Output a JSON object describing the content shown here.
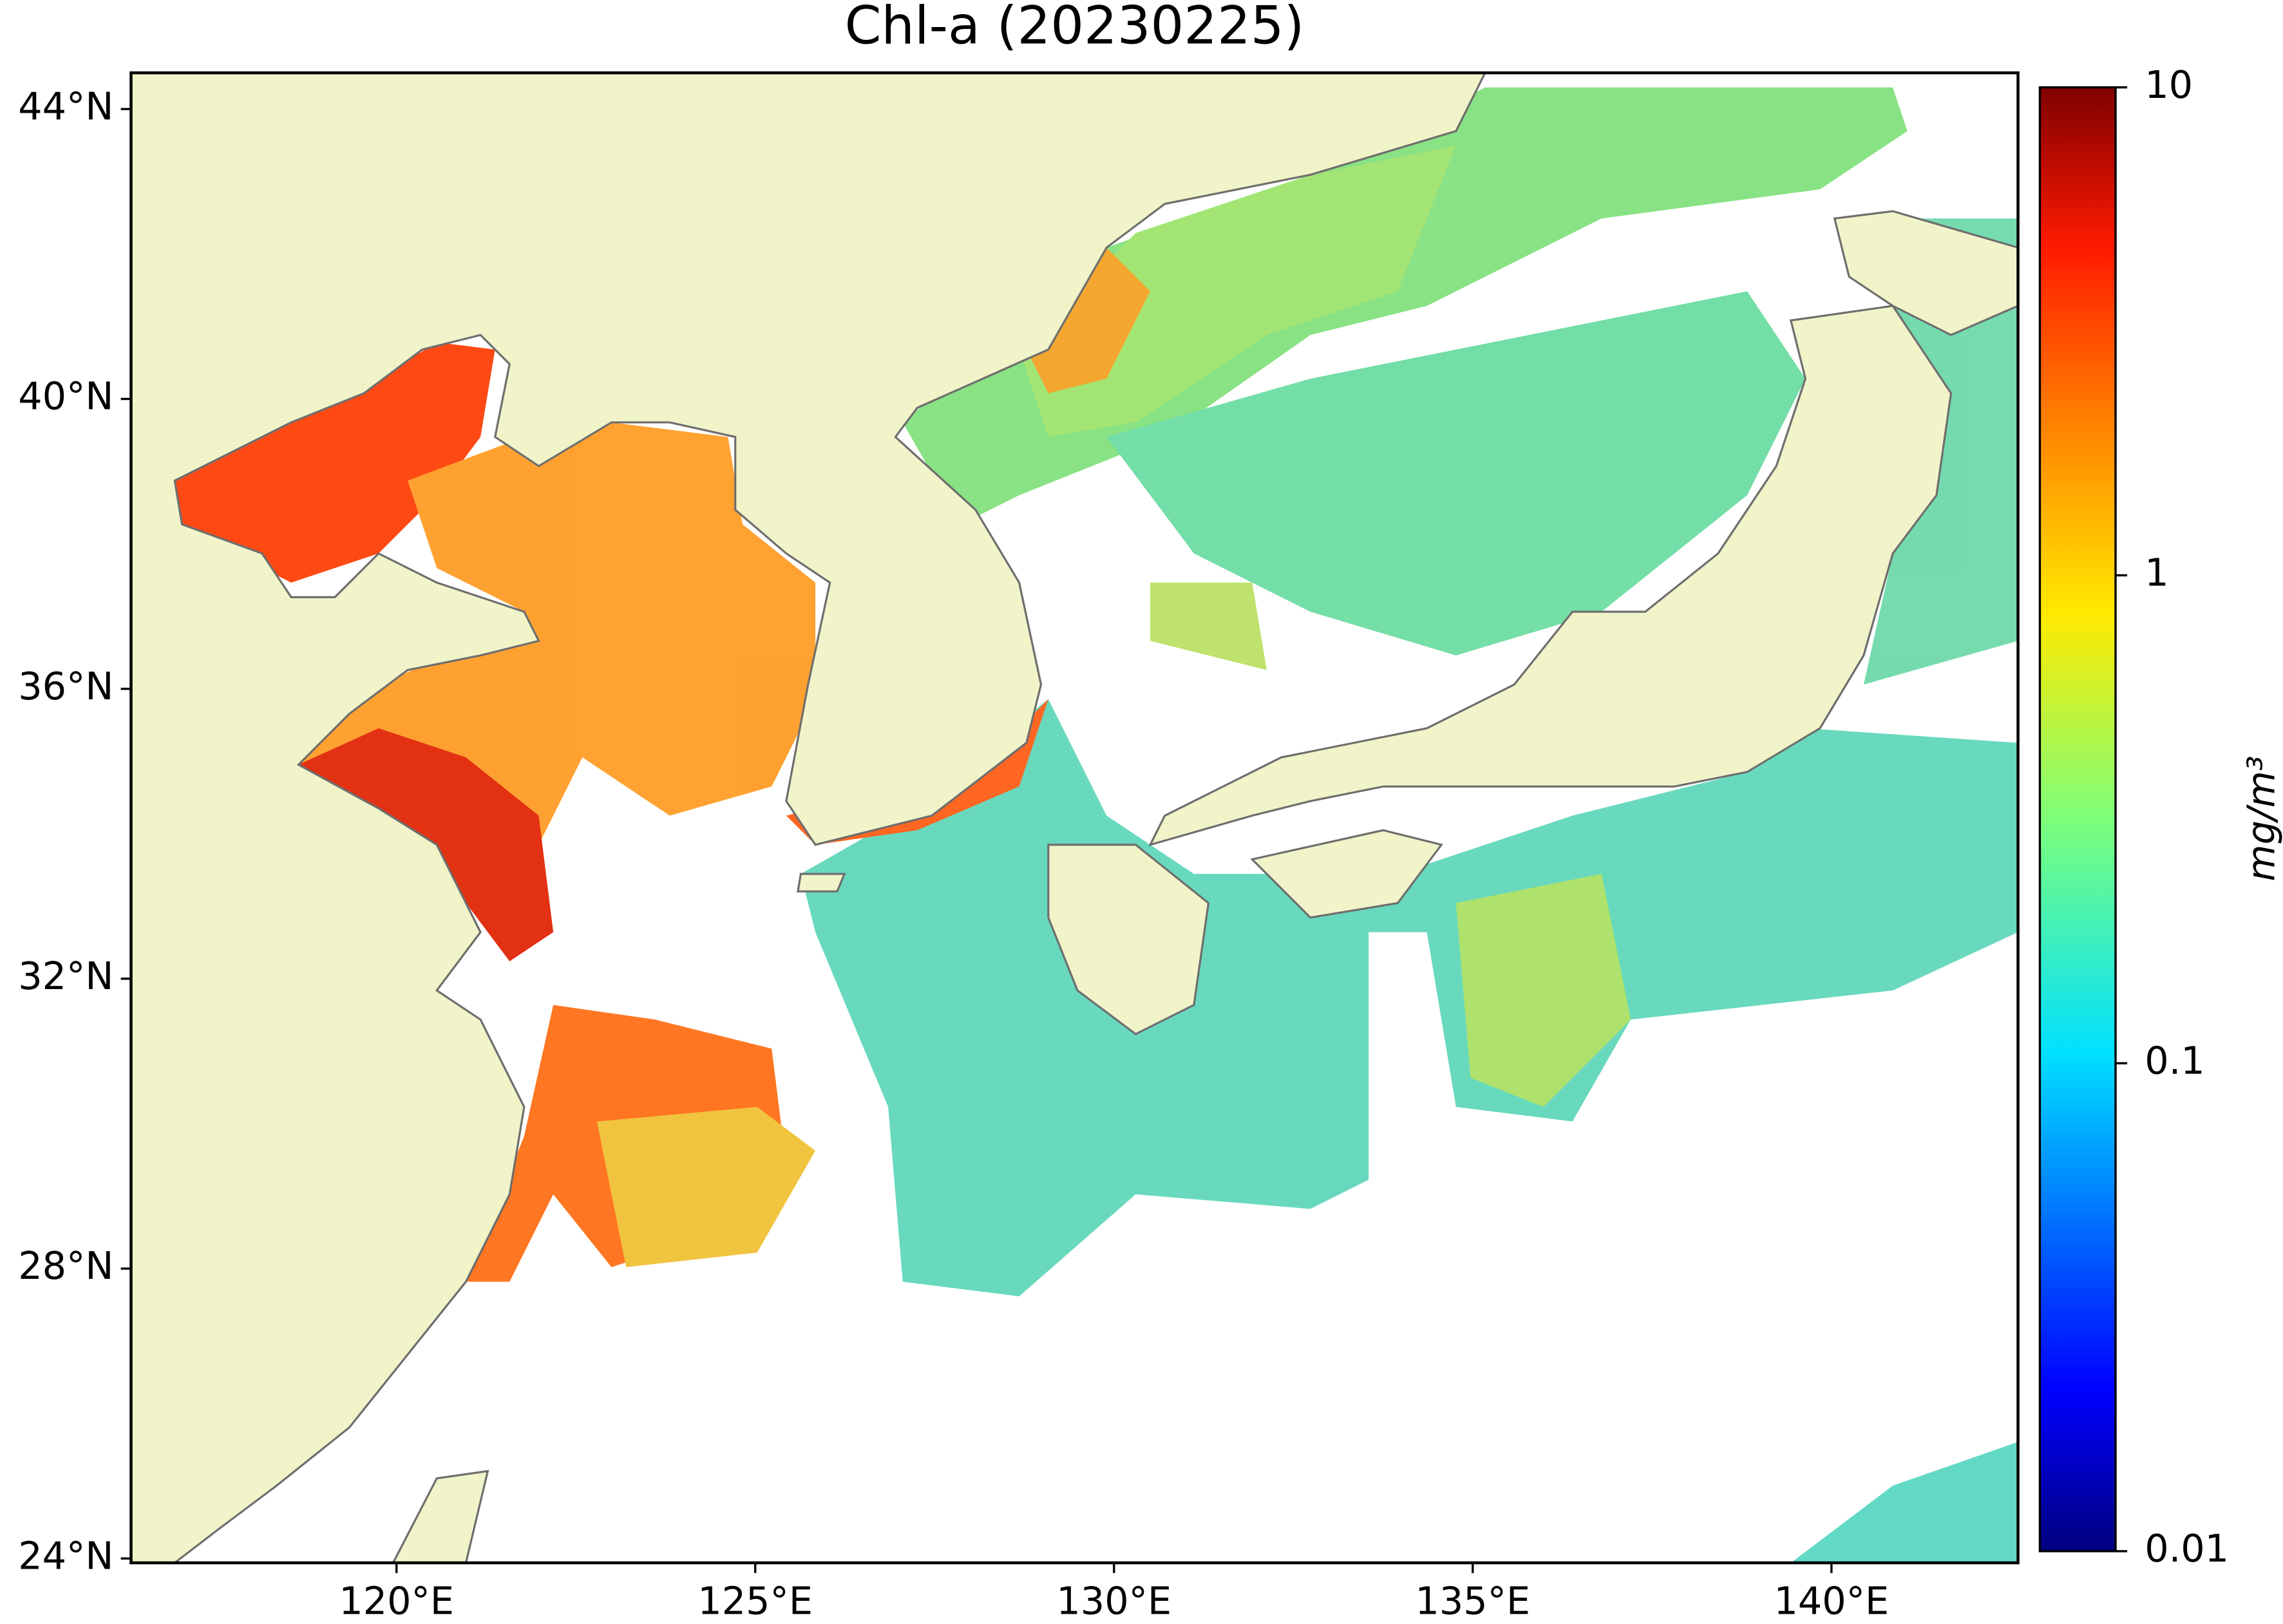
{
  "chart_data": {
    "type": "map",
    "title": "Chl-a (20230225)",
    "xlim": [
      116.3,
      142.6
    ],
    "ylim": [
      23.94,
      44.5
    ],
    "xticks": [
      {
        "value": 120,
        "label": "120°E"
      },
      {
        "value": 125,
        "label": "125°E"
      },
      {
        "value": 130,
        "label": "130°E"
      },
      {
        "value": 135,
        "label": "135°E"
      },
      {
        "value": 140,
        "label": "140°E"
      }
    ],
    "yticks": [
      {
        "value": 24,
        "label": "24°N"
      },
      {
        "value": 28,
        "label": "28°N"
      },
      {
        "value": 32,
        "label": "32°N"
      },
      {
        "value": 36,
        "label": "36°N"
      },
      {
        "value": 40,
        "label": "40°N"
      },
      {
        "value": 44,
        "label": "44°N"
      }
    ],
    "colorbar": {
      "lim": [
        0.01,
        10
      ],
      "ticks": [
        0.01,
        0.1,
        1,
        10
      ],
      "log": true,
      "label": "mg/m³"
    }
  }
}
